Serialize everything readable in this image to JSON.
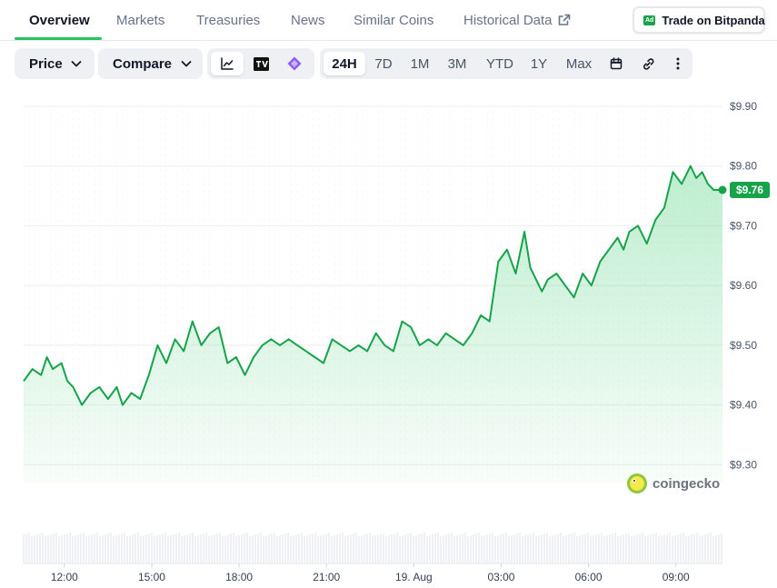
{
  "tabs": [
    {
      "label": "Overview",
      "active": true
    },
    {
      "label": "Markets"
    },
    {
      "label": "Treasuries"
    },
    {
      "label": "News"
    },
    {
      "label": "Similar Coins"
    },
    {
      "label": "Historical Data",
      "icon": "external-link-icon"
    }
  ],
  "ad_button": {
    "badge": "Ad",
    "label": "Trade on Bitpanda"
  },
  "toolbar": {
    "price_label": "Price",
    "compare_label": "Compare",
    "chart_type_icons": [
      "line-chart-icon",
      "tradingview-icon",
      "diamond-icon"
    ],
    "ranges": [
      "24H",
      "7D",
      "1M",
      "3M",
      "YTD",
      "1Y",
      "Max"
    ],
    "active_range": "24H",
    "extra_icons": [
      "calendar-icon",
      "link-icon",
      "more-icon"
    ]
  },
  "watermark": "coingecko",
  "colors": {
    "accent": "#16a34a",
    "line": "#16a34a",
    "tab_underline": "#22c55e"
  },
  "chart_data": {
    "type": "area",
    "current_price_label": "$9.76",
    "ylim": [
      9.27,
      9.9
    ],
    "yticks": [
      9.3,
      9.4,
      9.5,
      9.6,
      9.7,
      9.8,
      9.9
    ],
    "ytick_labels": [
      "$9.30",
      "$9.40",
      "$9.50",
      "$9.60",
      "$9.70",
      "$9.80",
      "$9.90"
    ],
    "xlim": [
      10.6,
      34.6
    ],
    "xticks": [
      12,
      15,
      18,
      21,
      24,
      27,
      30,
      33
    ],
    "xtick_labels": [
      "12:00",
      "15:00",
      "18:00",
      "21:00",
      "19. Aug",
      "03:00",
      "06:00",
      "09:00"
    ],
    "x": [
      10.6,
      10.9,
      11.2,
      11.4,
      11.6,
      11.9,
      12.1,
      12.3,
      12.6,
      12.9,
      13.2,
      13.5,
      13.8,
      14.0,
      14.3,
      14.6,
      14.9,
      15.2,
      15.5,
      15.8,
      16.1,
      16.4,
      16.7,
      17.0,
      17.3,
      17.6,
      17.9,
      18.2,
      18.5,
      18.8,
      19.1,
      19.4,
      19.7,
      20.0,
      20.3,
      20.6,
      20.9,
      21.2,
      21.5,
      21.8,
      22.1,
      22.4,
      22.7,
      23.0,
      23.3,
      23.6,
      23.9,
      24.2,
      24.5,
      24.8,
      25.1,
      25.4,
      25.7,
      26.0,
      26.3,
      26.6,
      26.9,
      27.2,
      27.5,
      27.8,
      28.0,
      28.2,
      28.4,
      28.6,
      28.9,
      29.2,
      29.5,
      29.8,
      30.1,
      30.4,
      30.7,
      31.0,
      31.2,
      31.4,
      31.7,
      32.0,
      32.3,
      32.6,
      32.9,
      33.2,
      33.5,
      33.7,
      33.9,
      34.1,
      34.3,
      34.6
    ],
    "values": [
      9.44,
      9.46,
      9.45,
      9.48,
      9.46,
      9.47,
      9.44,
      9.43,
      9.4,
      9.42,
      9.43,
      9.41,
      9.43,
      9.4,
      9.42,
      9.41,
      9.45,
      9.5,
      9.47,
      9.51,
      9.49,
      9.54,
      9.5,
      9.52,
      9.53,
      9.47,
      9.48,
      9.45,
      9.48,
      9.5,
      9.51,
      9.5,
      9.51,
      9.5,
      9.49,
      9.48,
      9.47,
      9.51,
      9.5,
      9.49,
      9.5,
      9.49,
      9.52,
      9.5,
      9.49,
      9.54,
      9.53,
      9.5,
      9.51,
      9.5,
      9.52,
      9.51,
      9.5,
      9.52,
      9.55,
      9.54,
      9.64,
      9.66,
      9.62,
      9.69,
      9.63,
      9.61,
      9.59,
      9.61,
      9.62,
      9.6,
      9.58,
      9.62,
      9.6,
      9.64,
      9.66,
      9.68,
      9.66,
      9.69,
      9.7,
      9.67,
      9.71,
      9.73,
      9.79,
      9.77,
      9.8,
      9.78,
      9.79,
      9.77,
      9.76,
      9.76
    ]
  }
}
